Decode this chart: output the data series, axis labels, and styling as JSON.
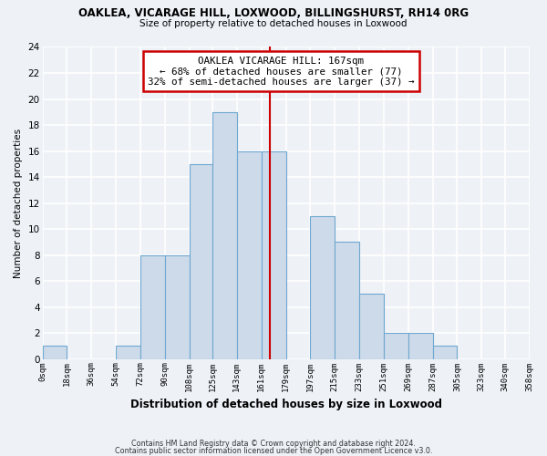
{
  "title1": "OAKLEA, VICARAGE HILL, LOXWOOD, BILLINGSHURST, RH14 0RG",
  "title2": "Size of property relative to detached houses in Loxwood",
  "xlabel": "Distribution of detached houses by size in Loxwood",
  "ylabel": "Number of detached properties",
  "bin_edges": [
    0,
    18,
    36,
    54,
    72,
    90,
    108,
    125,
    143,
    161,
    179,
    197,
    215,
    233,
    251,
    269,
    287,
    305,
    323,
    340,
    358
  ],
  "bar_heights": [
    1,
    0,
    0,
    1,
    8,
    8,
    15,
    19,
    16,
    16,
    0,
    11,
    9,
    5,
    2,
    2,
    1,
    0,
    0,
    0
  ],
  "bar_color": "#cddaea",
  "bar_edge_color": "#6fa8d0",
  "vline_x": 167,
  "vline_color": "#cc0000",
  "annotation_title": "OAKLEA VICARAGE HILL: 167sqm",
  "annotation_line1": "← 68% of detached houses are smaller (77)",
  "annotation_line2": "32% of semi-detached houses are larger (37) →",
  "annotation_box_color": "#ffffff",
  "annotation_box_edge": "#cc0000",
  "ylim": [
    0,
    24
  ],
  "yticks": [
    0,
    2,
    4,
    6,
    8,
    10,
    12,
    14,
    16,
    18,
    20,
    22,
    24
  ],
  "footer1": "Contains HM Land Registry data © Crown copyright and database right 2024.",
  "footer2": "Contains public sector information licensed under the Open Government Licence v3.0.",
  "bg_color": "#eef2f7",
  "grid_color": "#ffffff",
  "plot_bg_color": "#eef2f7"
}
